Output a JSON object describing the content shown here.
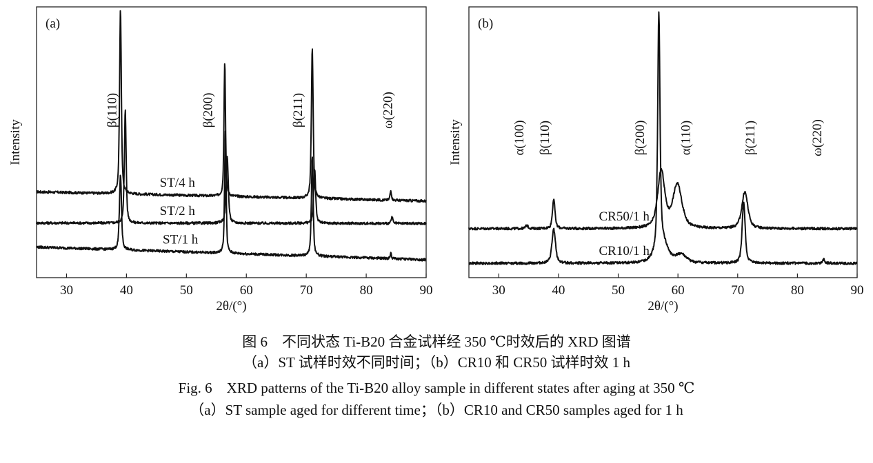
{
  "chart_data": [
    {
      "type": "line",
      "panel_label": "(a)",
      "xlabel": "2θ/(°)",
      "ylabel": "Intensity",
      "xlim": [
        25,
        90
      ],
      "xticks": [
        30,
        40,
        50,
        60,
        70,
        80,
        90
      ],
      "y_ticks_shown": false,
      "grid": false,
      "peak_labels": [
        {
          "text": "β(110)",
          "x": 37.5
        },
        {
          "text": "β(200)",
          "x": 53.5
        },
        {
          "text": "β(211)",
          "x": 68.5
        },
        {
          "text": "ω(220)",
          "x": 83.5
        }
      ],
      "series": [
        {
          "name": "ST/4 h",
          "label_x": 48.5,
          "baseline": [
            31.7,
            28.3
          ],
          "peaks": [
            {
              "x": 39.0,
              "h": 68,
              "w": 0.35
            },
            {
              "x": 56.4,
              "h": 50,
              "w": 0.3
            },
            {
              "x": 71.0,
              "h": 56,
              "w": 0.35
            },
            {
              "x": 84.1,
              "h": 3.5,
              "w": 0.3
            }
          ]
        },
        {
          "name": "ST/2 h",
          "label_x": 48.5,
          "baseline": [
            20.2,
            20.0
          ],
          "peaks": [
            {
              "x": 39.8,
              "h": 42,
              "w": 0.35
            },
            {
              "x": 56.8,
              "h": 25,
              "w": 0.45
            },
            {
              "x": 71.4,
              "h": 20,
              "w": 0.4
            },
            {
              "x": 84.3,
              "h": 2.5,
              "w": 0.3
            }
          ]
        },
        {
          "name": "ST/1 h",
          "label_x": 49.0,
          "baseline": [
            11.3,
            6.6
          ],
          "peaks": [
            {
              "x": 39.0,
              "h": 28,
              "w": 0.4
            },
            {
              "x": 56.5,
              "h": 45,
              "w": 0.3
            },
            {
              "x": 71.0,
              "h": 37,
              "w": 0.35
            },
            {
              "x": 84.1,
              "h": 2.0,
              "w": 0.25
            }
          ]
        }
      ]
    },
    {
      "type": "line",
      "panel_label": "(b)",
      "xlabel": "2θ/(°)",
      "ylabel": "Intensity",
      "xlim": [
        25,
        90
      ],
      "xticks": [
        30,
        40,
        50,
        60,
        70,
        80,
        90
      ],
      "y_ticks_shown": false,
      "grid": false,
      "peak_labels": [
        {
          "text": "α(100)",
          "x": 33.3
        },
        {
          "text": "β(110)",
          "x": 37.6
        },
        {
          "text": "β(200)",
          "x": 53.5
        },
        {
          "text": "α(110)",
          "x": 61.2
        },
        {
          "text": "β(211)",
          "x": 72.0
        },
        {
          "text": "ω(220)",
          "x": 83.2
        }
      ],
      "series": [
        {
          "name": "CR50/1 h",
          "label_x": 51.0,
          "baseline": [
            18.1,
            18.1
          ],
          "peaks": [
            {
              "x": 34.7,
              "h": 1.2,
              "w": 0.5
            },
            {
              "x": 39.2,
              "h": 11,
              "w": 0.5
            },
            {
              "x": 57.2,
              "h": 21,
              "w": 1.4
            },
            {
              "x": 59.9,
              "h": 16,
              "w": 1.8
            },
            {
              "x": 71.2,
              "h": 13.5,
              "w": 1.2
            }
          ]
        },
        {
          "name": "CR10/1 h",
          "label_x": 51.0,
          "baseline": [
            5.3,
            5.3
          ],
          "peaks": [
            {
              "x": 39.2,
              "h": 12.5,
              "w": 0.7
            },
            {
              "x": 56.8,
              "h": 86,
              "w": 0.45
            },
            {
              "x": 57.3,
              "h": 8,
              "w": 2.2
            },
            {
              "x": 60.5,
              "h": 3,
              "w": 2.0
            },
            {
              "x": 71.0,
              "h": 22.5,
              "w": 0.6
            },
            {
              "x": 84.4,
              "h": 1.5,
              "w": 0.5
            }
          ]
        }
      ]
    }
  ],
  "caption": {
    "zh_title": "图 6　不同状态 Ti-B20 合金试样经 350 ℃时效后的 XRD 图谱",
    "zh_sub": "（a）ST 试样时效不同时间；（b）CR10 和 CR50 试样时效 1 h",
    "en_title": "Fig. 6　XRD patterns of the Ti-B20 alloy sample in different states after aging at 350 ℃",
    "en_sub": "（a）ST sample aged for different time；（b）CR10 and CR50 samples aged for 1 h"
  }
}
